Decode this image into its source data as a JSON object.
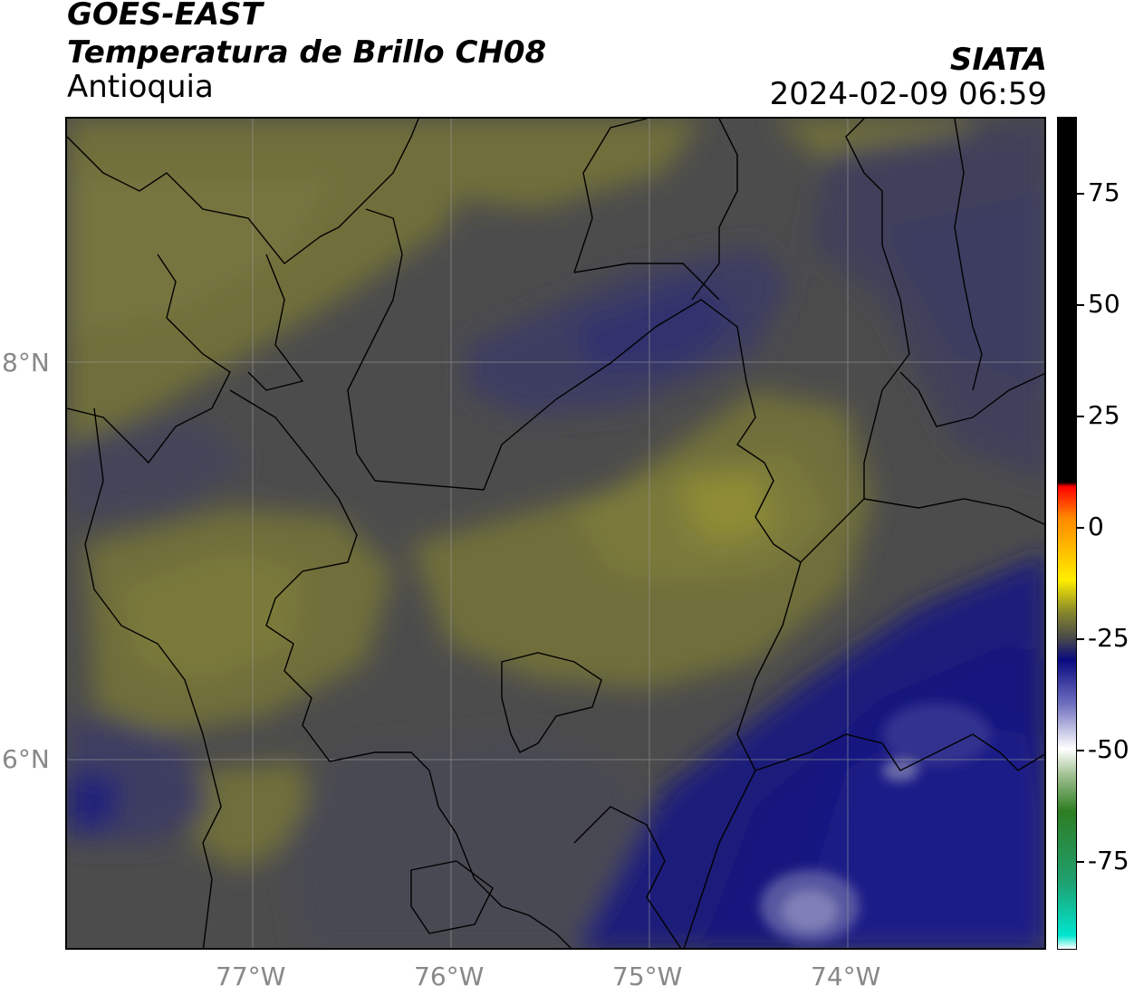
{
  "header": {
    "satellite": "GOES-EAST",
    "product": "Temperatura de Brillo CH08",
    "region": "Antioquia",
    "agency": "SIATA",
    "datetime": "2024-02-09 06:59"
  },
  "map": {
    "latitude_labels": [
      "8°N",
      "6°N"
    ],
    "longitude_labels": [
      "77°W",
      "76°W",
      "75°W",
      "74°W"
    ],
    "gridlines": true
  },
  "colorbar": {
    "tick_labels": [
      "75",
      "50",
      "25",
      "0",
      "-25",
      "-50",
      "-75"
    ],
    "tick_values": [
      75,
      50,
      25,
      0,
      -25,
      -50,
      -75
    ],
    "range": [
      -95,
      92
    ],
    "colors": {
      "above_10": "#000000",
      "warm_top": "#ff0000",
      "yellow": "#ffee00",
      "olive": "#8a8a2a",
      "gray": "#4a4a4a",
      "navy": "#0a0a80",
      "white": "#ffffff",
      "green": "#2e7d22",
      "cyan": "#00e5d0"
    }
  }
}
